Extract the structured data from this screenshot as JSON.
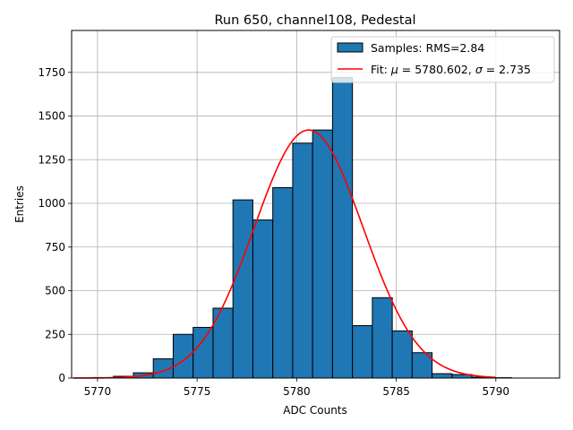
{
  "chart_data": {
    "type": "bar",
    "title": "Run 650, channel108, Pedestal",
    "xlabel": "ADC Counts",
    "ylabel": "Entries",
    "xlim": [
      5768.7,
      5793.2
    ],
    "ylim": [
      0,
      1990
    ],
    "xticks": [
      5770,
      5775,
      5780,
      5785,
      5790
    ],
    "yticks": [
      0,
      250,
      500,
      750,
      1000,
      1250,
      1500,
      1750
    ],
    "grid": true,
    "legend_position": "top-right",
    "histogram": {
      "name": "Samples: RMS=2.84",
      "bin_width": 1,
      "bin_left_edges": [
        5769.8,
        5770.8,
        5771.8,
        5772.8,
        5773.8,
        5774.8,
        5775.8,
        5776.8,
        5777.8,
        5778.8,
        5779.8,
        5780.8,
        5781.8,
        5782.8,
        5783.8,
        5784.8,
        5785.8,
        5786.8,
        5787.8,
        5788.8,
        5789.8
      ],
      "counts": [
        3,
        10,
        30,
        110,
        250,
        290,
        400,
        1020,
        905,
        1090,
        1345,
        1420,
        1720,
        300,
        460,
        270,
        145,
        25,
        20,
        5,
        2
      ],
      "color": "#1f77b4",
      "edge_color": "#000000"
    },
    "fit": {
      "name_prefix": "Fit: ",
      "mu_symbol": "μ",
      "mu_text": " = 5780.602, ",
      "sigma_symbol": "σ",
      "sigma_text": " = 2.735",
      "mu": 5780.602,
      "sigma": 2.735,
      "amplitude": 1420,
      "x_range": [
        5768.8,
        5790.0
      ],
      "color": "#ff0000"
    }
  }
}
